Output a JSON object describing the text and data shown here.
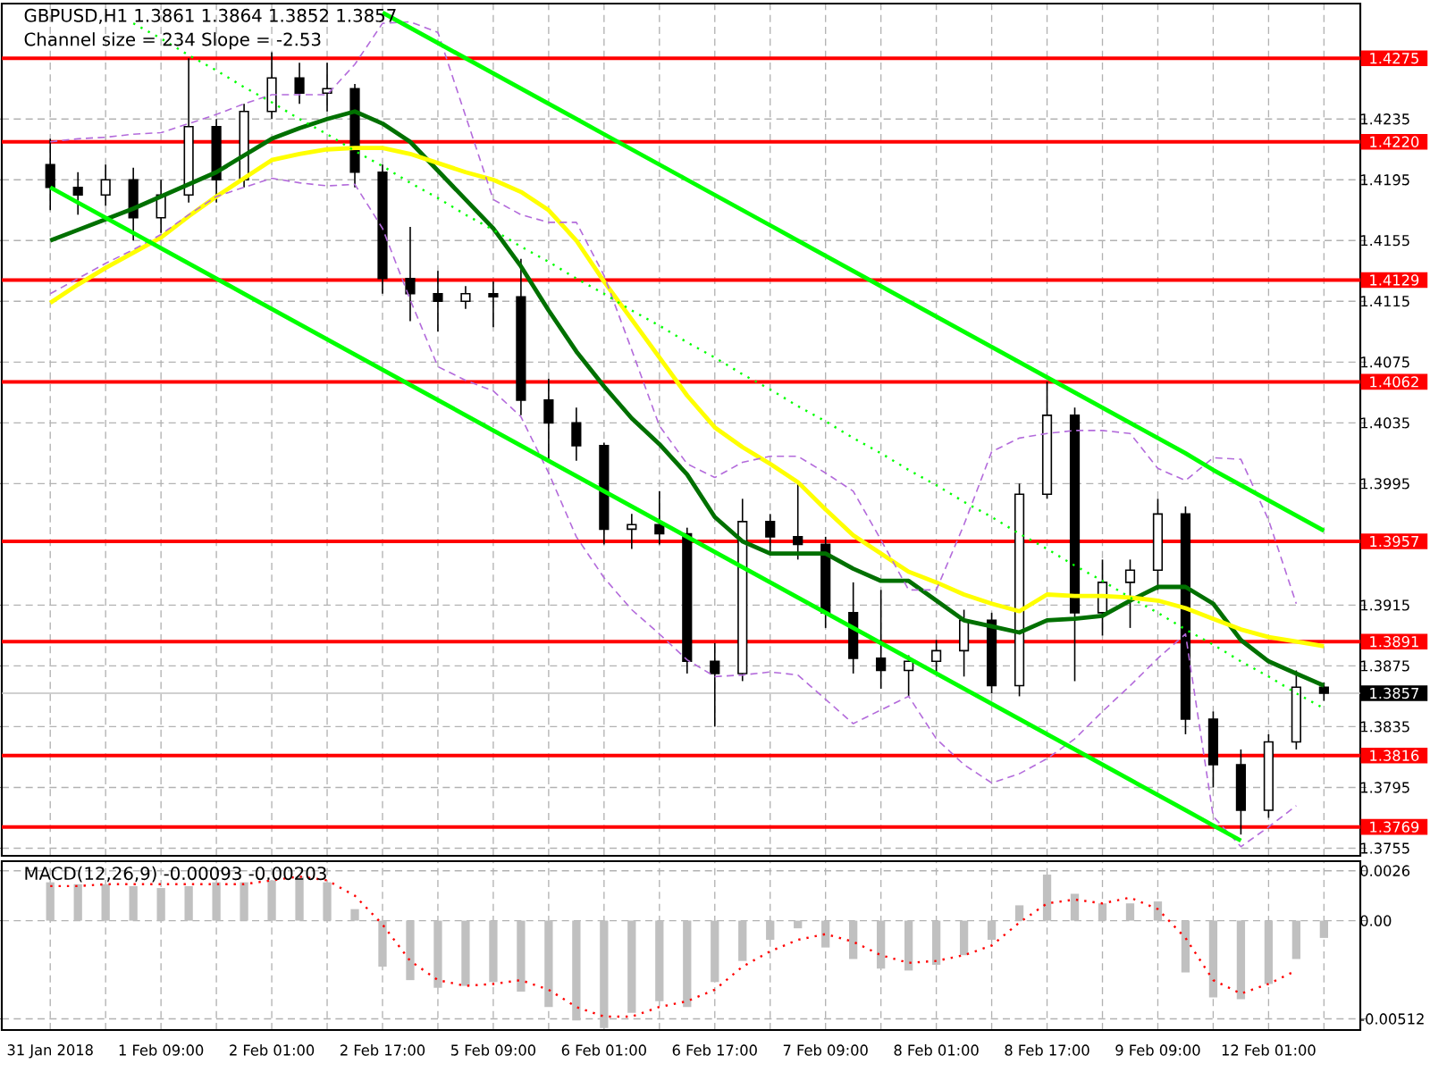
{
  "chart_data": [
    {
      "type": "candlestick",
      "title": "GBPUSD,H1 1.3861 1.3864 1.3852 1.3857",
      "subtitle": "Channel size = 234 Slope = -2.53",
      "categories": [
        null,
        null,
        null,
        null,
        null,
        null,
        null,
        null,
        null,
        null,
        null,
        null,
        null,
        null,
        null,
        null,
        null,
        null,
        null,
        null,
        null,
        null,
        null,
        null,
        null,
        null,
        null,
        null,
        null,
        null,
        null,
        null,
        null,
        null,
        null,
        null,
        null,
        null,
        null,
        null,
        null,
        null,
        null,
        null,
        null,
        null,
        null
      ],
      "ohlc": [
        [
          1.4205,
          1.4222,
          1.4175,
          1.419
        ],
        [
          1.419,
          1.42,
          1.4172,
          1.4185
        ],
        [
          1.4185,
          1.4205,
          1.4178,
          1.4195
        ],
        [
          1.4195,
          1.4203,
          1.4155,
          1.417
        ],
        [
          1.417,
          1.4195,
          1.416,
          1.4185
        ],
        [
          1.4185,
          1.4275,
          1.418,
          1.423
        ],
        [
          1.423,
          1.4235,
          1.418,
          1.4195
        ],
        [
          1.4195,
          1.4245,
          1.419,
          1.424
        ],
        [
          1.424,
          1.4279,
          1.4235,
          1.4262
        ],
        [
          1.4262,
          1.4272,
          1.4245,
          1.4252
        ],
        [
          1.4252,
          1.4272,
          1.424,
          1.4255
        ],
        [
          1.4255,
          1.4258,
          1.419,
          1.42
        ],
        [
          1.42,
          1.4205,
          1.412,
          1.413
        ],
        [
          1.413,
          1.4164,
          1.4102,
          1.412
        ],
        [
          1.412,
          1.4135,
          1.4095,
          1.4115
        ],
        [
          1.4115,
          1.4125,
          1.411,
          1.412
        ],
        [
          1.412,
          1.4128,
          1.4098,
          1.4118
        ],
        [
          1.4118,
          1.4143,
          1.404,
          1.405
        ],
        [
          1.405,
          1.4064,
          1.401,
          1.4035
        ],
        [
          1.4035,
          1.4045,
          1.401,
          1.402
        ],
        [
          1.402,
          1.4022,
          1.3955,
          1.3965
        ],
        [
          1.3965,
          1.3975,
          1.3952,
          1.3968
        ],
        [
          1.3968,
          1.399,
          1.3955,
          1.3962
        ],
        [
          1.3962,
          1.3966,
          1.387,
          1.3878
        ],
        [
          1.3878,
          1.389,
          1.3835,
          1.387
        ],
        [
          1.387,
          1.3985,
          1.3865,
          1.397
        ],
        [
          1.397,
          1.3975,
          1.395,
          1.396
        ],
        [
          1.396,
          1.3995,
          1.3945,
          1.3955
        ],
        [
          1.3955,
          1.396,
          1.39,
          1.391
        ],
        [
          1.391,
          1.393,
          1.387,
          1.388
        ],
        [
          1.388,
          1.3925,
          1.386,
          1.3872
        ],
        [
          1.3872,
          1.3882,
          1.3855,
          1.3878
        ],
        [
          1.3878,
          1.3892,
          1.387,
          1.3885
        ],
        [
          1.3885,
          1.3912,
          1.3868,
          1.3905
        ],
        [
          1.3905,
          1.391,
          1.3857,
          1.3862
        ],
        [
          1.3862,
          1.3995,
          1.3855,
          1.3988
        ],
        [
          1.3988,
          1.4062,
          1.3985,
          1.404
        ],
        [
          1.404,
          1.4045,
          1.3865,
          1.391
        ],
        [
          1.391,
          1.3945,
          1.3895,
          1.393
        ],
        [
          1.393,
          1.3945,
          1.39,
          1.3938
        ],
        [
          1.3938,
          1.3985,
          1.3925,
          1.3975
        ],
        [
          1.3975,
          1.398,
          1.383,
          1.384
        ],
        [
          1.384,
          1.3845,
          1.3795,
          1.381
        ],
        [
          1.381,
          1.382,
          1.3764,
          1.378
        ],
        [
          1.378,
          1.383,
          1.3775,
          1.3825
        ],
        [
          1.3825,
          1.3872,
          1.382,
          1.3861
        ],
        [
          1.3861,
          1.3864,
          1.3852,
          1.3857
        ]
      ],
      "series": [
        {
          "type": "line",
          "color": "#007000",
          "line_style": "solid",
          "values": [
            1.4155,
            1.4162,
            1.4169,
            1.4176,
            1.4184,
            1.4192,
            1.42,
            1.4211,
            1.4222,
            1.4229,
            1.4235,
            1.424,
            1.4232,
            1.422,
            1.4201,
            1.4182,
            1.4163,
            1.4138,
            1.4109,
            1.4082,
            1.4059,
            1.4038,
            1.4021,
            1.4001,
            1.3973,
            1.3957,
            1.3949,
            1.3949,
            1.3949,
            1.3939,
            1.3931,
            1.3931,
            1.3918,
            1.3905,
            1.3901,
            1.3897,
            1.3905,
            1.3906,
            1.3908,
            1.3918,
            1.3927,
            1.3927,
            1.3916,
            1.3892,
            1.3878,
            1.387,
            1.3862
          ]
        },
        {
          "type": "line",
          "color": "#ffff00",
          "line_style": "solid",
          "values": [
            1.4114,
            1.4126,
            1.4137,
            1.4147,
            1.4157,
            1.4171,
            1.4184,
            1.4196,
            1.4208,
            1.4212,
            1.4215,
            1.4216,
            1.4216,
            1.4212,
            1.4206,
            1.42,
            1.4195,
            1.4187,
            1.4175,
            1.4155,
            1.4128,
            1.4103,
            1.4078,
            1.4053,
            1.4032,
            1.4019,
            1.4008,
            1.3996,
            1.3978,
            1.3961,
            1.3949,
            1.3937,
            1.393,
            1.3922,
            1.3916,
            1.3911,
            1.3922,
            1.3921,
            1.3921,
            1.392,
            1.3918,
            1.3913,
            1.3906,
            1.3899,
            1.3894,
            1.3891,
            1.3888
          ]
        },
        {
          "type": "line",
          "color": "#b36bdb",
          "line_style": "dashed",
          "values": [
            1.422,
            1.4222,
            1.4223,
            1.4225,
            1.4226,
            1.4232,
            1.4238,
            1.4245,
            1.4251,
            1.4251,
            1.4251,
            1.4271,
            1.4298,
            1.4299,
            1.4292,
            1.4237,
            1.4182,
            1.4172,
            1.4167,
            1.4167,
            1.4132,
            1.4083,
            1.4033,
            1.4008,
            1.3999,
            1.4009,
            1.4013,
            1.4013,
            1.4002,
            1.399,
            1.3958,
            1.3925,
            1.3925,
            1.3968,
            1.4016,
            1.4025,
            1.4028,
            1.403,
            1.403,
            1.4028,
            1.4005,
            1.3997,
            1.4012,
            1.4011,
            1.3971,
            1.3916,
            null
          ]
        },
        {
          "type": "line",
          "color": "#b36bdb",
          "line_style": "dashed",
          "values": [
            1.412,
            1.413,
            1.414,
            1.4149,
            1.4159,
            1.4172,
            1.4184,
            1.419,
            1.4196,
            1.4193,
            1.4191,
            1.4192,
            1.4163,
            1.4116,
            1.4072,
            1.4063,
            1.4056,
            1.4039,
            1.4002,
            1.396,
            1.3933,
            1.3912,
            1.3896,
            1.3879,
            1.3868,
            1.3869,
            1.3871,
            1.3869,
            1.3853,
            1.3837,
            1.3846,
            1.3855,
            1.3827,
            1.381,
            1.3798,
            1.3804,
            1.3814,
            1.3827,
            1.3845,
            1.3862,
            1.388,
            1.3896,
            1.3776,
            1.3756,
            1.3769,
            1.3783,
            null
          ]
        },
        {
          "type": "line",
          "color": "#00ff00",
          "line_style": "solid",
          "values": [
            null,
            null,
            null,
            null,
            null,
            null,
            null,
            null,
            null,
            null,
            null,
            null,
            1.4305,
            1.4295,
            1.4285,
            1.4275,
            1.4265,
            1.4255,
            1.4245,
            1.4235,
            1.4225,
            1.4215,
            1.4205,
            1.4195,
            1.4185,
            1.4175,
            1.4165,
            1.4155,
            1.4145,
            1.4135,
            1.4125,
            1.4115,
            1.4105,
            1.4095,
            1.4085,
            1.4075,
            1.4065,
            1.4055,
            1.4045,
            1.4035,
            1.4025,
            1.4015,
            1.4004,
            1.3994,
            1.3984,
            1.3974,
            1.3964
          ]
        },
        {
          "type": "line",
          "color": "#00ff00",
          "line_style": "solid",
          "values": [
            1.419,
            1.418,
            1.417,
            1.416,
            1.415,
            1.414,
            1.413,
            1.412,
            1.411,
            1.41,
            1.409,
            1.408,
            1.407,
            1.406,
            1.405,
            1.404,
            1.403,
            1.402,
            1.401,
            1.4,
            1.399,
            1.398,
            1.397,
            1.396,
            1.395,
            1.394,
            1.393,
            1.392,
            1.391,
            1.39,
            1.389,
            1.388,
            1.387,
            1.386,
            1.385,
            1.384,
            1.383,
            1.382,
            1.381,
            1.38,
            1.379,
            1.378,
            1.377,
            1.376,
            null,
            null,
            null
          ]
        },
        {
          "type": "line",
          "color": "#00ff00",
          "line_style": "dotted",
          "values": [
            null,
            null,
            null,
            1.4298,
            1.4288,
            1.4277,
            1.4267,
            1.4256,
            1.4246,
            1.4235,
            1.4225,
            1.4214,
            1.4204,
            1.4193,
            1.4183,
            1.4172,
            1.4162,
            1.4151,
            1.4141,
            1.413,
            1.412,
            1.4109,
            1.4099,
            1.4088,
            1.4078,
            1.4067,
            1.4057,
            1.4046,
            1.4036,
            1.4025,
            1.4015,
            1.4004,
            1.3994,
            1.3983,
            1.3973,
            1.3962,
            1.3952,
            1.3941,
            1.3931,
            1.392,
            1.391,
            1.3899,
            1.3889,
            1.3878,
            1.3868,
            1.3857,
            1.3847
          ]
        }
      ],
      "ylim": [
        1.375,
        1.4311
      ],
      "yticks": [
        1.3755,
        1.3795,
        1.3835,
        1.3875,
        1.3915,
        1.3995,
        1.4035,
        1.4075,
        1.4115,
        1.4155,
        1.4195,
        1.4235
      ],
      "ref_lines": [
        {
          "axis": "y",
          "value": 1.4275,
          "label": "1.4275",
          "color": "#ff0000"
        },
        {
          "axis": "y",
          "value": 1.422,
          "label": "1.4220",
          "color": "#ff0000"
        },
        {
          "axis": "y",
          "value": 1.4129,
          "label": "1.4129",
          "color": "#ff0000"
        },
        {
          "axis": "y",
          "value": 1.4062,
          "label": "1.4062",
          "color": "#ff0000"
        },
        {
          "axis": "y",
          "value": 1.3957,
          "label": "1.3957",
          "color": "#ff0000"
        },
        {
          "axis": "y",
          "value": 1.3891,
          "label": "1.3891",
          "color": "#ff0000"
        },
        {
          "axis": "y",
          "value": 1.3816,
          "label": "1.3816",
          "color": "#ff0000"
        },
        {
          "axis": "y",
          "value": 1.3769,
          "label": "1.3769",
          "color": "#ff0000"
        },
        {
          "axis": "y",
          "value": 1.3857,
          "label": "1.3857",
          "color": "#c0c0c0"
        }
      ],
      "grid": true,
      "tick_labels": "y"
    },
    {
      "type": "bar",
      "title": "MACD(12,26,9) -0.00093 -0.00203",
      "categories": [
        "31 Jan 2018",
        null,
        null,
        null,
        "1 Feb 09:00",
        null,
        null,
        null,
        "2 Feb 01:00",
        null,
        null,
        null,
        "2 Feb 17:00",
        null,
        null,
        null,
        "5 Feb 09:00",
        null,
        null,
        null,
        "6 Feb 01:00",
        null,
        null,
        null,
        "6 Feb 17:00",
        null,
        null,
        null,
        "7 Feb 09:00",
        null,
        null,
        null,
        "8 Feb 01:00",
        null,
        null,
        null,
        "8 Feb 17:00",
        null,
        null,
        null,
        "9 Feb 09:00",
        null,
        null,
        null,
        "12 Feb 01:00",
        null,
        null
      ],
      "series": [
        {
          "color": "#c0c0c0",
          "values": [
            0.002,
            0.0019,
            0.0019,
            0.0018,
            0.0017,
            0.0018,
            0.002,
            0.002,
            0.0021,
            0.0023,
            0.002,
            0.0006,
            -0.0024,
            -0.0031,
            -0.0035,
            -0.0034,
            -0.0032,
            -0.0037,
            -0.0045,
            -0.0052,
            -0.0056,
            -0.0048,
            -0.0042,
            -0.0045,
            -0.0032,
            -0.0021,
            -0.001,
            -0.0004,
            -0.0014,
            -0.002,
            -0.0025,
            -0.0026,
            -0.0023,
            -0.0018,
            -0.001,
            0.0008,
            0.0024,
            0.0014,
            0.0009,
            0.0009,
            0.001,
            -0.0027,
            -0.004,
            -0.0041,
            -0.0033,
            -0.002,
            -0.0009
          ]
        },
        {
          "type": "line",
          "color": "#ff0000",
          "line_style": "dotted",
          "values": [
            0.0018,
            0.0018,
            0.0019,
            0.0019,
            0.0019,
            0.0019,
            0.0019,
            0.0019,
            0.0021,
            0.0023,
            0.0021,
            0.0013,
            -0.0002,
            -0.0021,
            -0.0031,
            -0.0034,
            -0.0033,
            -0.0031,
            -0.0036,
            -0.0045,
            -0.005,
            -0.005,
            -0.0045,
            -0.0042,
            -0.0036,
            -0.0024,
            -0.0016,
            -0.001,
            -0.0007,
            -0.0011,
            -0.0018,
            -0.0022,
            -0.0021,
            -0.0018,
            -0.0013,
            -0.0001,
            0.0009,
            0.0011,
            0.0009,
            0.0012,
            0.0006,
            -0.0009,
            -0.0031,
            -0.0038,
            -0.0033,
            -0.0026,
            null
          ]
        }
      ],
      "ylim": [
        -0.0057,
        0.0031
      ],
      "yticks": [
        0.0026,
        {
          "value": 0,
          "label": "0.00"
        },
        -0.00512
      ],
      "grid": true
    }
  ]
}
